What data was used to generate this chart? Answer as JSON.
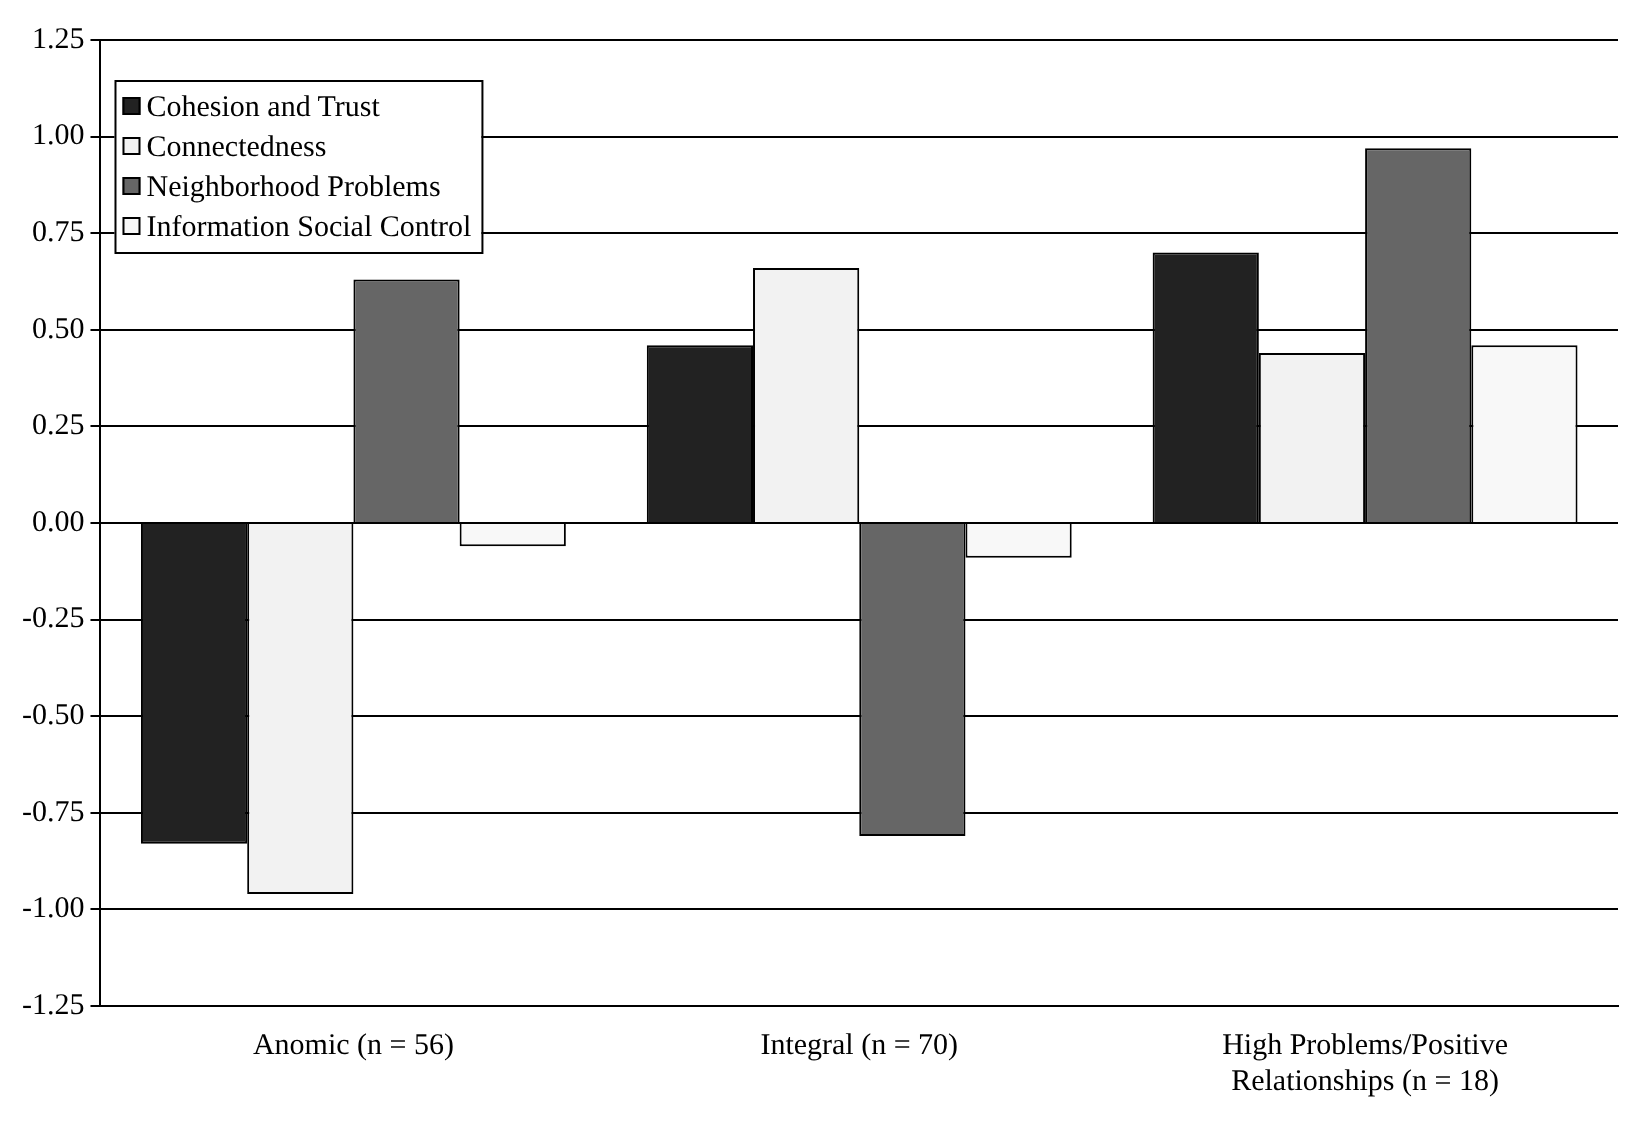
{
  "chart_data": {
    "type": "bar",
    "categories": [
      "Anomic (n = 56)",
      "Integral (n = 70)",
      "High Problems/Positive Relationships (n = 18)"
    ],
    "series": [
      {
        "name": "Cohesion and Trust",
        "color": "#222222",
        "values": [
          -0.83,
          0.46,
          0.7
        ]
      },
      {
        "name": "Connectedness",
        "color": "#f2f2f2",
        "values": [
          -0.96,
          0.66,
          0.44
        ]
      },
      {
        "name": "Neighborhood Problems",
        "color": "#666666",
        "values": [
          0.63,
          -0.81,
          0.97
        ]
      },
      {
        "name": "Information Social Control",
        "color": "#f8f8f8",
        "values": [
          -0.06,
          -0.09,
          0.46
        ]
      }
    ],
    "ylim": [
      -1.25,
      1.25
    ],
    "yticks": [
      -1.25,
      {
        "value": -1,
        "label": "-1.00"
      },
      -0.75,
      {
        "value": -0.5,
        "label": "-0.50"
      },
      -0.25,
      {
        "value": 0,
        "label": "0.00"
      },
      0.25,
      {
        "value": 0.5,
        "label": "0.50"
      },
      0.75,
      {
        "value": 1,
        "label": "1.00"
      },
      1.25
    ],
    "grid": "y",
    "legend": "top left"
  }
}
